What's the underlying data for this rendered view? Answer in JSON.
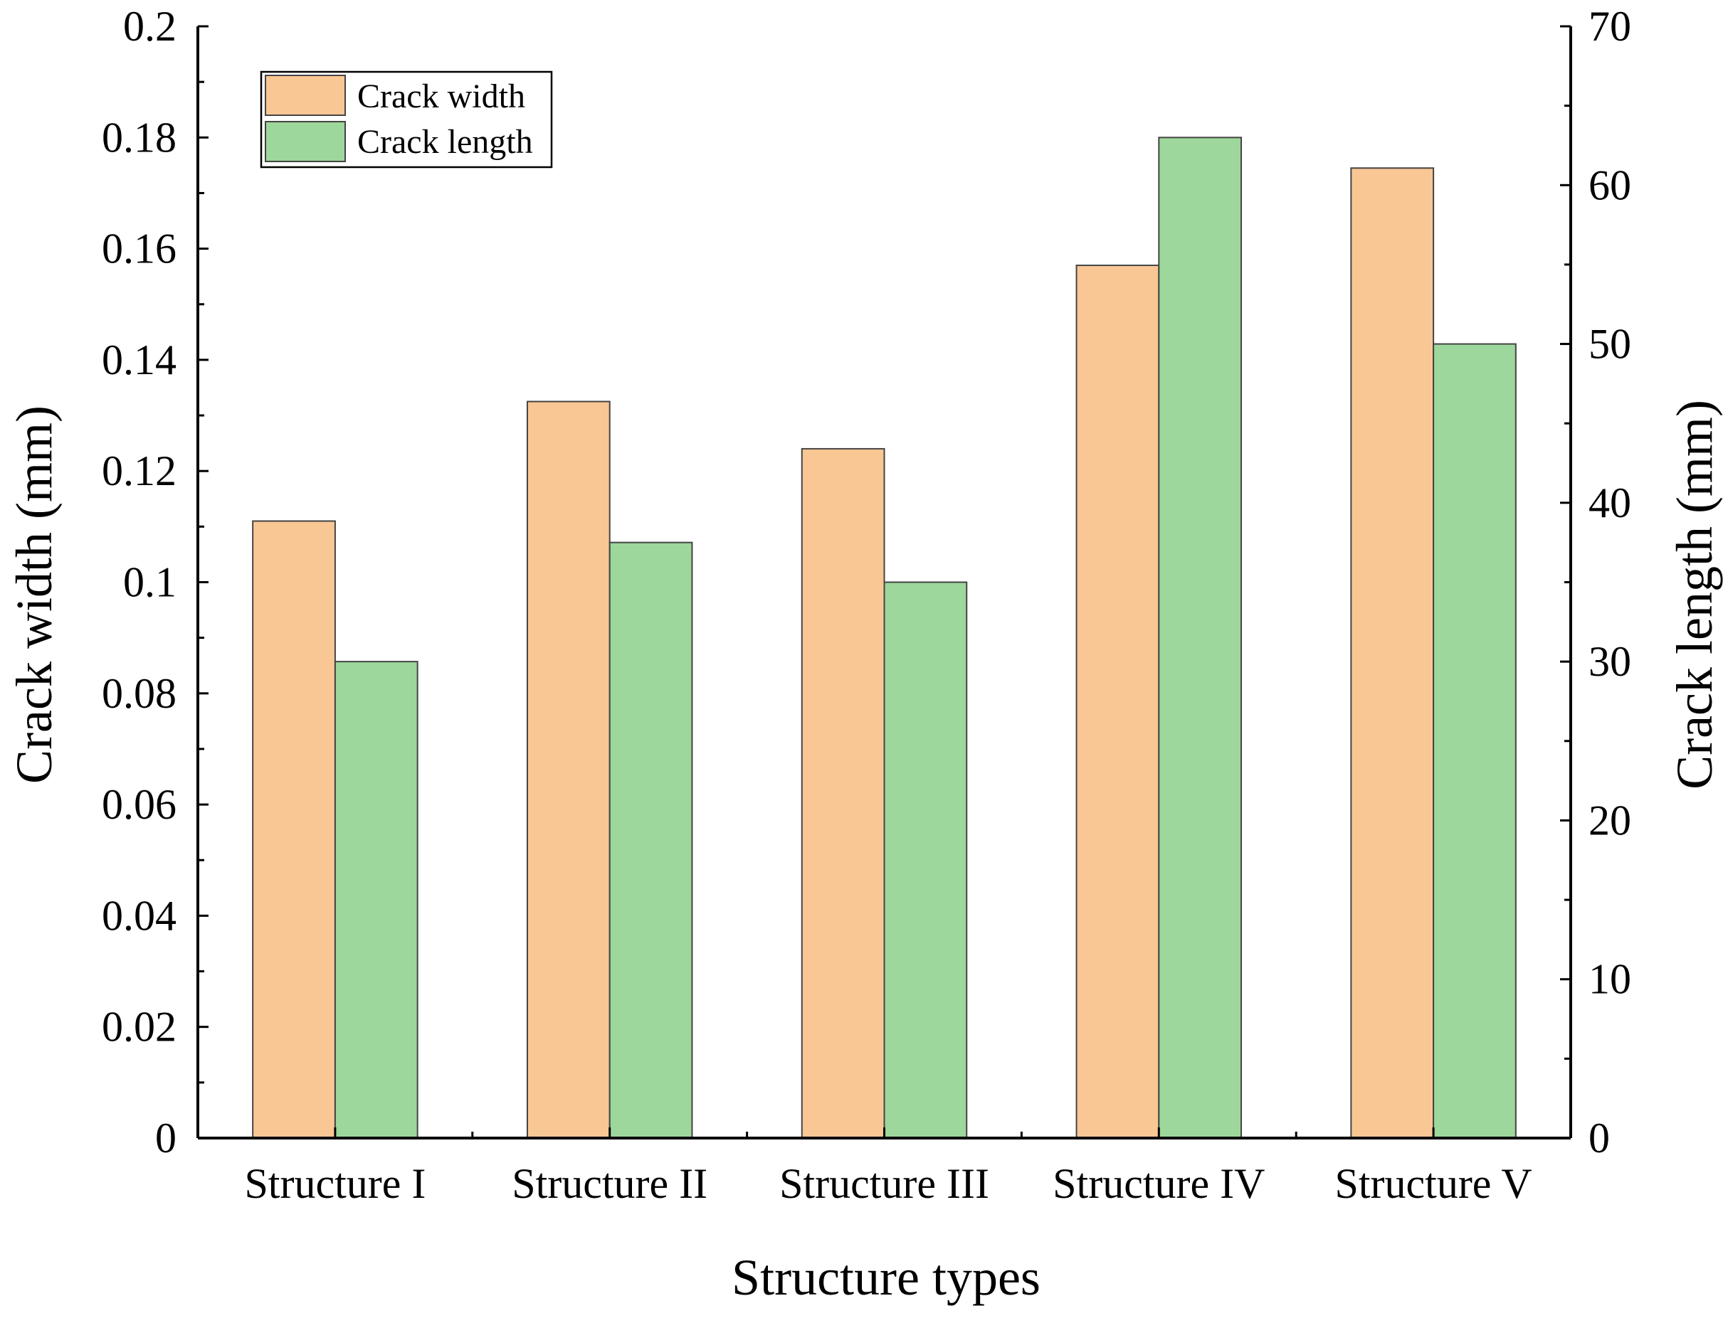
{
  "chart_data": {
    "type": "bar",
    "categories": [
      "Structure I",
      "Structure II",
      "Structure III",
      "Structure IV",
      "Structure V"
    ],
    "series": [
      {
        "name": "Crack width",
        "axis": "left",
        "color": "#f9c794",
        "values": [
          0.111,
          0.1325,
          0.124,
          0.157,
          0.1745
        ]
      },
      {
        "name": "Crack length",
        "axis": "right",
        "color": "#9dd79b",
        "values": [
          30,
          37.5,
          35,
          63,
          50
        ]
      }
    ],
    "xlabel": "Structure types",
    "ylabel": "Crack width (mm)",
    "y2label": "Crack length (mm)",
    "ylim": [
      0,
      0.2
    ],
    "y2lim": [
      0,
      70
    ],
    "yticks": [
      "0",
      "0.02",
      "0.04",
      "0.06",
      "0.08",
      "0.1",
      "0.12",
      "0.14",
      "0.16",
      "0.18",
      "0.2"
    ],
    "y2ticks": [
      "0",
      "10",
      "20",
      "30",
      "40",
      "50",
      "60",
      "70"
    ],
    "legend_position": "top-left",
    "grid": false
  }
}
